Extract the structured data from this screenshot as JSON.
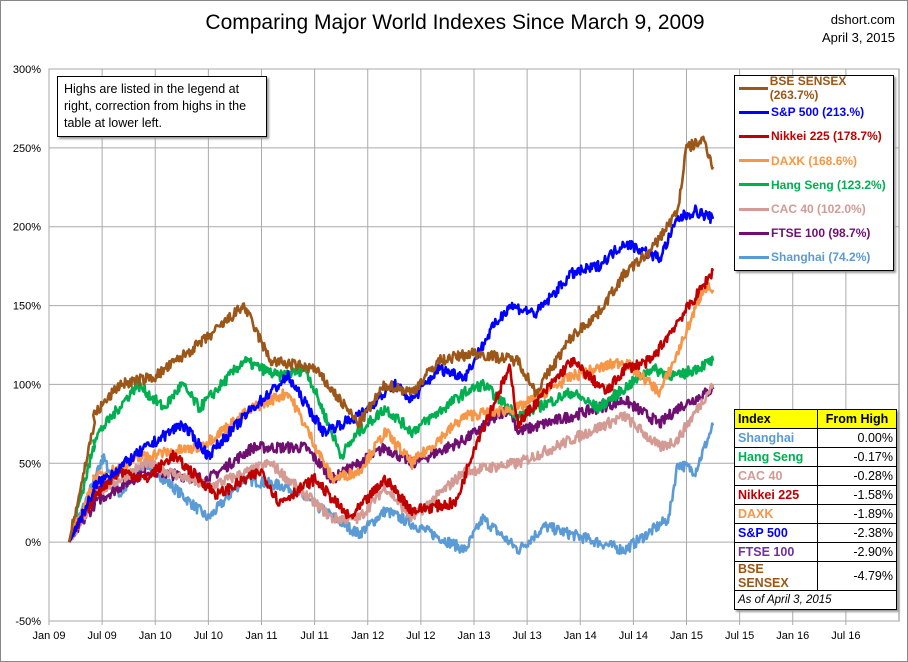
{
  "chart_data": {
    "type": "line",
    "title": "Comparing Major World Indexes Since March 9, 2009",
    "source": "dshort.com",
    "date": "April 3, 2015",
    "annotation": "Highs are listed in the legend at right, correction from highs in the table at lower left.",
    "ylim": [
      -50,
      300
    ],
    "yticks": [
      "-50%",
      "0%",
      "50%",
      "100%",
      "150%",
      "200%",
      "250%",
      "300%"
    ],
    "xlim": [
      "2009-01",
      "2017-01"
    ],
    "xticks": [
      "Jan 09",
      "Jul 09",
      "Jan 10",
      "Jul 10",
      "Jan 11",
      "Jul 11",
      "Jan 12",
      "Jul 12",
      "Jan 13",
      "Jul 13",
      "Jan 14",
      "Jul 14",
      "Jan 15",
      "Jul 15",
      "Jan 16",
      "Jul 16"
    ],
    "grid": true,
    "legend_placement": "top-right",
    "series": [
      {
        "name": "BSE SENSEX",
        "legend": "BSE SENSEX (263.7%)",
        "color": "#9c5618",
        "x": [
          "2009-03",
          "2009-06",
          "2009-09",
          "2010-01",
          "2010-07",
          "2010-11",
          "2011-02",
          "2011-07",
          "2011-12",
          "2012-03",
          "2012-06",
          "2012-09",
          "2013-01",
          "2013-06",
          "2013-08",
          "2013-12",
          "2014-03",
          "2014-06",
          "2014-09",
          "2014-12",
          "2015-01",
          "2015-03",
          "2015-04"
        ],
        "y": [
          0,
          80,
          100,
          105,
          130,
          150,
          115,
          110,
          75,
          100,
          95,
          115,
          120,
          115,
          95,
          130,
          145,
          170,
          185,
          210,
          250,
          255,
          238
        ]
      },
      {
        "name": "S&P 500",
        "legend": "S&P 500 (213.%)",
        "color": "#0000ff",
        "x": [
          "2009-03",
          "2009-06",
          "2009-12",
          "2010-04",
          "2010-07",
          "2010-12",
          "2011-04",
          "2011-08",
          "2011-12",
          "2012-04",
          "2012-06",
          "2012-09",
          "2012-12",
          "2013-03",
          "2013-05",
          "2013-08",
          "2013-12",
          "2014-03",
          "2014-06",
          "2014-10",
          "2014-12",
          "2015-02",
          "2015-04"
        ],
        "y": [
          0,
          35,
          60,
          75,
          55,
          85,
          105,
          70,
          80,
          100,
          90,
          110,
          105,
          135,
          150,
          145,
          170,
          175,
          190,
          180,
          205,
          210,
          205
        ]
      },
      {
        "name": "Nikkei 225",
        "legend": "Nikkei 225 (178.7%)",
        "color": "#c00000",
        "x": [
          "2009-03",
          "2009-06",
          "2009-09",
          "2009-12",
          "2010-03",
          "2010-08",
          "2011-01",
          "2011-03",
          "2011-07",
          "2011-11",
          "2012-03",
          "2012-06",
          "2012-11",
          "2013-01",
          "2013-05",
          "2013-06",
          "2013-09",
          "2013-12",
          "2014-04",
          "2014-06",
          "2014-09",
          "2014-12",
          "2015-02",
          "2015-04"
        ],
        "y": [
          0,
          30,
          45,
          40,
          55,
          30,
          45,
          25,
          40,
          15,
          40,
          20,
          25,
          60,
          110,
          75,
          95,
          115,
          95,
          110,
          115,
          140,
          155,
          172
        ]
      },
      {
        "name": "DAXK",
        "legend": "DAXK (168.6%)",
        "color": "#f79646",
        "x": [
          "2009-03",
          "2009-06",
          "2009-12",
          "2010-06",
          "2010-12",
          "2011-04",
          "2011-09",
          "2011-12",
          "2012-03",
          "2012-06",
          "2012-12",
          "2013-06",
          "2013-12",
          "2014-06",
          "2014-10",
          "2014-12",
          "2015-03",
          "2015-04"
        ],
        "y": [
          0,
          40,
          55,
          60,
          85,
          95,
          40,
          45,
          70,
          50,
          80,
          85,
          105,
          115,
          95,
          120,
          162,
          160
        ]
      },
      {
        "name": "Hang Seng",
        "legend": "Hang Seng (123.2%)",
        "color": "#00b050",
        "x": [
          "2009-03",
          "2009-06",
          "2009-11",
          "2010-02",
          "2010-04",
          "2010-06",
          "2010-11",
          "2011-03",
          "2011-06",
          "2011-10",
          "2011-12",
          "2012-03",
          "2012-06",
          "2012-12",
          "2013-02",
          "2013-06",
          "2013-12",
          "2014-03",
          "2014-09",
          "2014-12",
          "2015-04"
        ],
        "y": [
          0,
          65,
          100,
          85,
          100,
          85,
          115,
          105,
          110,
          55,
          70,
          85,
          70,
          95,
          100,
          80,
          95,
          85,
          110,
          105,
          115
        ]
      },
      {
        "name": "CAC 40",
        "legend": "CAC 40 (102.0%)",
        "color": "#d49a94",
        "x": [
          "2009-03",
          "2009-06",
          "2009-12",
          "2010-07",
          "2011-02",
          "2011-09",
          "2011-12",
          "2012-03",
          "2012-06",
          "2012-12",
          "2013-06",
          "2013-12",
          "2014-06",
          "2014-10",
          "2014-12",
          "2015-04"
        ],
        "y": [
          0,
          30,
          50,
          35,
          50,
          15,
          15,
          35,
          15,
          45,
          50,
          65,
          80,
          60,
          65,
          100
        ]
      },
      {
        "name": "FTSE 100",
        "legend": "FTSE 100 (98.7%)",
        "color": "#6f0f72",
        "x": [
          "2009-03",
          "2009-06",
          "2009-12",
          "2010-07",
          "2010-12",
          "2011-06",
          "2011-09",
          "2011-12",
          "2012-03",
          "2012-06",
          "2012-12",
          "2013-05",
          "2013-06",
          "2013-12",
          "2014-06",
          "2014-10",
          "2014-12",
          "2015-04"
        ],
        "y": [
          0,
          25,
          45,
          40,
          60,
          60,
          40,
          50,
          60,
          50,
          65,
          85,
          70,
          80,
          90,
          75,
          85,
          97
        ]
      },
      {
        "name": "Shanghai",
        "legend": "Shanghai (74.2%)",
        "color": "#5b9bd5",
        "x": [
          "2009-03",
          "2009-07",
          "2009-09",
          "2009-12",
          "2010-07",
          "2010-11",
          "2011-04",
          "2011-12",
          "2012-03",
          "2012-12",
          "2013-02",
          "2013-06",
          "2013-09",
          "2013-12",
          "2014-06",
          "2014-11",
          "2014-12",
          "2015-02",
          "2015-04"
        ],
        "y": [
          0,
          55,
          30,
          50,
          15,
          40,
          35,
          5,
          20,
          -5,
          15,
          -5,
          10,
          5,
          -5,
          15,
          50,
          45,
          74
        ]
      }
    ],
    "table": {
      "headers": [
        "Index",
        "From High"
      ],
      "rows": [
        {
          "index": "Shanghai",
          "value": "0.00%",
          "color": "#5b9bd5"
        },
        {
          "index": "Hang Seng",
          "value": "-0.17%",
          "color": "#00b050"
        },
        {
          "index": "CAC 40",
          "value": "-0.28%",
          "color": "#d49a94"
        },
        {
          "index": "Nikkei 225",
          "value": "-1.58%",
          "color": "#c00000"
        },
        {
          "index": "DAXK",
          "value": "-1.89%",
          "color": "#f79646"
        },
        {
          "index": "S&P 500",
          "value": "-2.38%",
          "color": "#0000ff"
        },
        {
          "index": "FTSE 100",
          "value": "-2.90%",
          "color": "#7030a0"
        },
        {
          "index": "BSE SENSEX",
          "value": "-4.79%",
          "color": "#9c5618"
        }
      ],
      "footer": "As of April 3, 2015"
    }
  }
}
